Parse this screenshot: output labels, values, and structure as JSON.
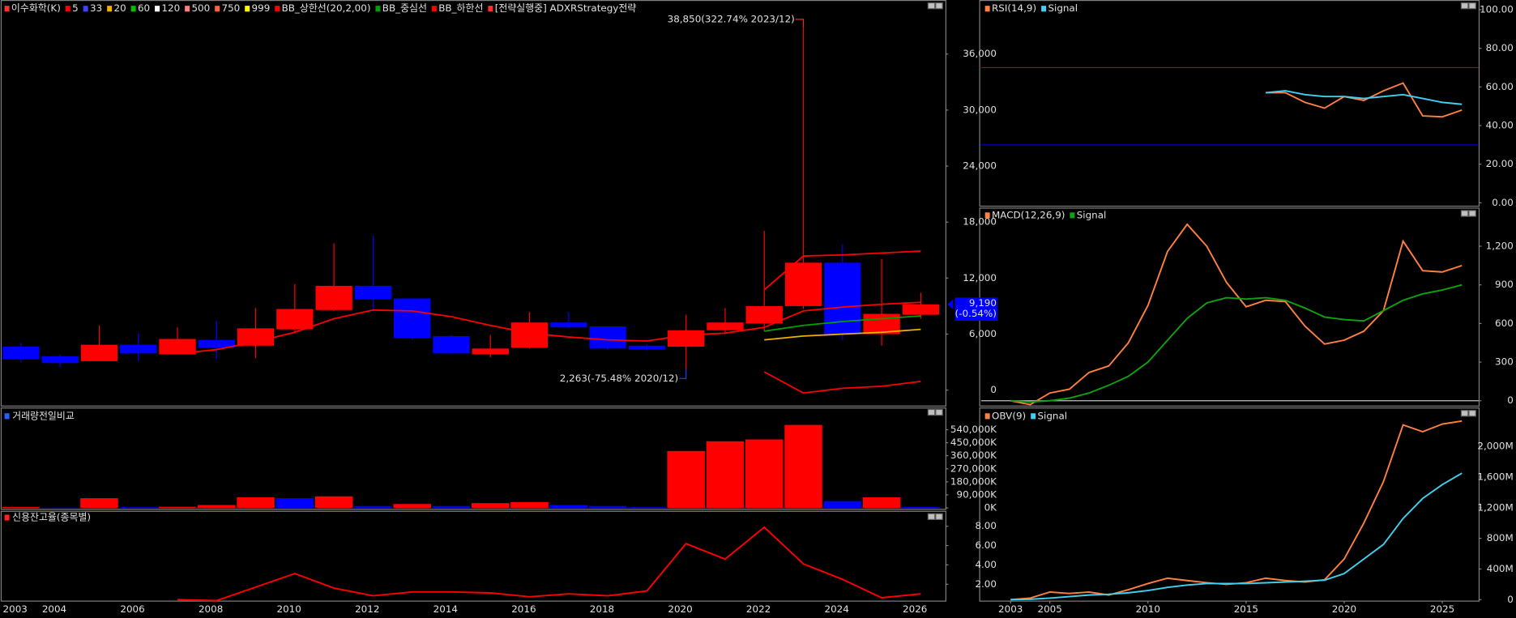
{
  "chart_data": [
    {
      "type": "candlestick",
      "name": "이수화학(K)",
      "name_color": "#ff3030",
      "categories": [
        "2003",
        "2004",
        null,
        "2006",
        null,
        "2008",
        null,
        "2010",
        null,
        "2012",
        null,
        "2014",
        null,
        "2016",
        null,
        "2018",
        null,
        "2020",
        null,
        "2022",
        null,
        "2024",
        null,
        "2026"
      ],
      "open": [
        4650,
        3620,
        3100,
        4860,
        3830,
        5380,
        4760,
        6510,
        8580,
        11170,
        9820,
        5790,
        3830,
        4550,
        7240,
        6820,
        4760,
        4650,
        6410,
        7140,
        9000,
        13650,
        6000,
        8070
      ],
      "high": [
        5070,
        3800,
        6930,
        6100,
        6720,
        7450,
        8790,
        11370,
        15720,
        16540,
        9820,
        5900,
        5890,
        8380,
        8380,
        6820,
        4900,
        8070,
        8790,
        17060,
        38850,
        15610,
        14060,
        10440
      ],
      "low": [
        3000,
        2380,
        3100,
        3100,
        3830,
        3310,
        3410,
        6100,
        8480,
        8380,
        5380,
        3830,
        3520,
        4450,
        6620,
        4340,
        4240,
        2263,
        6100,
        6310,
        8690,
        5380,
        4760,
        7650
      ],
      "close": [
        3310,
        2900,
        4860,
        3930,
        5480,
        4550,
        6620,
        8690,
        11170,
        9720,
        5580,
        3930,
        4450,
        7240,
        6720,
        4450,
        4340,
        6410,
        7240,
        9000,
        13650,
        6000,
        8170,
        9190
      ],
      "up_color": "#ff0000",
      "down_color": "#0000ff",
      "series": [
        {
          "name": "5",
          "color": "#ff0000",
          "values": [
            null,
            null,
            null,
            null,
            3900,
            4340,
            5170,
            6200,
            7650,
            8580,
            8480,
            7860,
            6930,
            6100,
            5690,
            5380,
            5270,
            5900,
            6100,
            6720,
            8480,
            8900,
            9200,
            9400
          ]
        },
        {
          "name": "33",
          "color": "#4040ff",
          "values": [
            null,
            null,
            null,
            null,
            null,
            null,
            null,
            null,
            null,
            null,
            null,
            null,
            null,
            null,
            null,
            null,
            null,
            null,
            null,
            null,
            null,
            null,
            null,
            null
          ]
        },
        {
          "name": "20",
          "color": "#f0b000",
          "values": [
            null,
            null,
            null,
            null,
            null,
            null,
            null,
            null,
            null,
            null,
            null,
            null,
            null,
            null,
            null,
            null,
            null,
            null,
            null,
            5380,
            5790,
            6000,
            6200,
            6510
          ]
        },
        {
          "name": "60",
          "color": "#00c000",
          "values": [
            null,
            null,
            null,
            null,
            null,
            null,
            null,
            null,
            null,
            null,
            null,
            null,
            null,
            null,
            null,
            null,
            null,
            null,
            null,
            null,
            null,
            null,
            null,
            null
          ]
        },
        {
          "name": "120",
          "color": "#ffffff",
          "values": [
            null,
            null,
            null,
            null,
            null,
            null,
            null,
            null,
            null,
            null,
            null,
            null,
            null,
            null,
            null,
            null,
            null,
            null,
            null,
            null,
            null,
            null,
            null,
            null
          ]
        },
        {
          "name": "500",
          "color": "#ff8080",
          "values": [
            null,
            null,
            null,
            null,
            null,
            null,
            null,
            null,
            null,
            null,
            null,
            null,
            null,
            null,
            null,
            null,
            null,
            null,
            null,
            null,
            null,
            null,
            null,
            null
          ]
        },
        {
          "name": "750",
          "color": "#ff6040",
          "values": [
            null,
            null,
            null,
            null,
            null,
            null,
            null,
            null,
            null,
            null,
            null,
            null,
            null,
            null,
            null,
            null,
            null,
            null,
            null,
            null,
            null,
            null,
            null,
            null
          ]
        },
        {
          "name": "999",
          "color": "#ffff00",
          "values": [
            null,
            null,
            null,
            null,
            null,
            null,
            null,
            null,
            null,
            null,
            null,
            null,
            null,
            null,
            null,
            null,
            null,
            null,
            null,
            null,
            null,
            null,
            null,
            null
          ]
        },
        {
          "name": "BB_상한선(20,2,00)",
          "color": "#ff0000",
          "values": [
            null,
            null,
            null,
            null,
            null,
            null,
            null,
            null,
            null,
            null,
            null,
            null,
            null,
            null,
            null,
            null,
            null,
            null,
            null,
            10750,
            14370,
            14480,
            14690,
            14900
          ]
        },
        {
          "name": "BB_중심선",
          "color": "#00a000",
          "values": [
            null,
            null,
            null,
            null,
            null,
            null,
            null,
            null,
            null,
            null,
            null,
            null,
            null,
            null,
            null,
            null,
            null,
            null,
            null,
            6310,
            6930,
            7340,
            7650,
            7960
          ]
        },
        {
          "name": "BB_하한선",
          "color": "#ff0000",
          "values": [
            null,
            null,
            null,
            null,
            null,
            null,
            null,
            null,
            null,
            null,
            null,
            null,
            null,
            null,
            null,
            null,
            null,
            null,
            null,
            1960,
            -310,
            200,
            410,
            930
          ]
        }
      ],
      "strategy_label": "[전략실행중] ADXRStrategy전략",
      "strategy_color": "#ff3030",
      "ylim": [
        -1655,
        41483
      ],
      "yticks": [
        0,
        {
          "value": 6000,
          "label": "6,000"
        },
        {
          "value": 12000,
          "label": "12,000"
        },
        {
          "value": 18000,
          "label": "18,000"
        },
        {
          "value": 24000,
          "label": "24,000"
        },
        {
          "value": 30000,
          "label": "30,000"
        },
        {
          "value": 36000,
          "label": "36,000"
        }
      ],
      "annotations": [
        {
          "value": 38850,
          "label": "38,850(322.74% 2023/12)",
          "color": "#ff2020"
        },
        {
          "value": 2263,
          "label": "2,263(-75.48% 2020/12)",
          "color": "#2040ff"
        }
      ],
      "last_price": {
        "value": 9190,
        "label": "9,190"
      },
      "last_change": "(-0.54%)"
    },
    {
      "type": "bar",
      "title": "거래량전일비교",
      "title_color": "#2060ff",
      "values": [
        7000,
        2000,
        67000,
        5000,
        8000,
        20000,
        73000,
        67000,
        80000,
        13000,
        27000,
        13000,
        33000,
        40000,
        20000,
        13000,
        5000,
        393000,
        460000,
        473000,
        573000,
        47000,
        73000,
        7000
      ],
      "colors": [
        "#ff0000",
        "#0000ff",
        "#ff0000",
        "#0000ff",
        "#ff0000",
        "#ff0000",
        "#ff0000",
        "#0000ff",
        "#ff0000",
        "#0000ff",
        "#ff0000",
        "#0000ff",
        "#ff0000",
        "#ff0000",
        "#0000ff",
        "#0000ff",
        "#0000ff",
        "#ff0000",
        "#ff0000",
        "#ff0000",
        "#ff0000",
        "#0000ff",
        "#ff0000",
        "#0000ff"
      ],
      "ylim": [
        -6667,
        673333
      ],
      "yticks": [
        {
          "value": 0,
          "label": "0K"
        },
        {
          "value": 90000,
          "label": "90,000K"
        },
        {
          "value": 180000,
          "label": "180,000K"
        },
        {
          "value": 270000,
          "label": "270,000K"
        },
        {
          "value": 360000,
          "label": "360,000K"
        },
        {
          "value": 450000,
          "label": "450,000K"
        },
        {
          "value": 540000,
          "label": "540,000K"
        }
      ]
    },
    {
      "type": "line",
      "title": "신용잔고율(종목별)",
      "title_color": "#ff2020",
      "color": "#ff0000",
      "values": [
        null,
        null,
        null,
        null,
        0.4,
        0.3,
        1.7,
        3.1,
        1.6,
        0.8,
        1.2,
        1.2,
        1.1,
        0.7,
        1.0,
        0.8,
        1.3,
        6.2,
        4.6,
        7.9,
        4.1,
        2.5,
        0.6,
        1.0
      ],
      "ylim": [
        0.3,
        9.5
      ],
      "yticks": [
        {
          "value": 2,
          "label": "2.00"
        },
        {
          "value": 4,
          "label": "4.00"
        },
        {
          "value": 6,
          "label": "6.00"
        },
        {
          "value": 8,
          "label": "8.00"
        }
      ]
    },
    {
      "type": "line",
      "x": [
        2003,
        2004,
        2005,
        2006,
        2007,
        2008,
        2009,
        2010,
        2011,
        2012,
        2013,
        2014,
        2015,
        2016,
        2017,
        2018,
        2019,
        2020,
        2021,
        2022,
        2023,
        2024,
        2025,
        2026
      ],
      "xlim": [
        2001.5,
        2026.85
      ],
      "series": [
        {
          "name": "RSI(14,9)",
          "color": "#ff8040",
          "values": [
            null,
            null,
            null,
            null,
            null,
            null,
            null,
            null,
            null,
            null,
            null,
            null,
            null,
            57,
            57,
            52,
            49,
            55,
            53,
            58,
            62,
            45,
            44.5,
            48
          ]
        },
        {
          "name": "Signal",
          "color": "#40d0f0",
          "values": [
            null,
            null,
            null,
            null,
            null,
            null,
            null,
            null,
            null,
            null,
            null,
            null,
            null,
            57,
            58,
            56,
            55,
            55,
            54,
            55,
            56,
            54,
            52,
            51
          ]
        }
      ],
      "hlines": [
        {
          "value": 70,
          "color": "#c00000"
        },
        {
          "value": 30,
          "color": "#0000c0"
        }
      ],
      "ylim": [
        -1.5,
        103.5
      ],
      "yticks": [
        {
          "value": 0,
          "label": "0.00"
        },
        {
          "value": 20,
          "label": "20.00"
        },
        {
          "value": 40,
          "label": "40.00"
        },
        {
          "value": 60,
          "label": "60.00"
        },
        {
          "value": 80,
          "label": "80.00"
        },
        {
          "value": 100,
          "label": "100.00"
        }
      ]
    },
    {
      "type": "line",
      "x": [
        2003,
        2004,
        2005,
        2006,
        2007,
        2008,
        2009,
        2010,
        2011,
        2012,
        2013,
        2014,
        2015,
        2016,
        2017,
        2018,
        2019,
        2020,
        2021,
        2022,
        2023,
        2024,
        2025,
        2026
      ],
      "xlim": [
        2001.5,
        2026.85
      ],
      "series": [
        {
          "name": "MACD(12,26,9)",
          "color": "#ff8040",
          "values": [
            0,
            -30,
            60,
            90,
            220,
            270,
            450,
            740,
            1160,
            1370,
            1200,
            920,
            730,
            780,
            770,
            580,
            440,
            470,
            540,
            700,
            1240,
            1010,
            1000,
            1050
          ]
        },
        {
          "name": "Signal",
          "color": "#10a010",
          "values": [
            0,
            -10,
            0,
            20,
            60,
            120,
            190,
            300,
            470,
            640,
            760,
            800,
            790,
            800,
            780,
            720,
            650,
            630,
            620,
            700,
            780,
            830,
            860,
            900
          ]
        }
      ],
      "hlines": [
        {
          "value": 0,
          "color": "#c0c0c0"
        }
      ],
      "ylim": [
        -37.5,
        1485
      ],
      "yticks": [
        0,
        300,
        600,
        900,
        {
          "value": 1200,
          "label": "1,200"
        }
      ]
    },
    {
      "type": "line",
      "x": [
        2003,
        2004,
        2005,
        2006,
        2007,
        2008,
        2009,
        2010,
        2011,
        2012,
        2013,
        2014,
        2015,
        2016,
        2017,
        2018,
        2019,
        2020,
        2021,
        2022,
        2023,
        2024,
        2025,
        2026
      ],
      "xlim": [
        2001.5,
        2026.85
      ],
      "xticks": [
        2003,
        2005,
        2010,
        2015,
        2020,
        2025
      ],
      "series": [
        {
          "name": "OBV(9)",
          "color": "#ff8040",
          "values": [
            0,
            20,
            100,
            80,
            100,
            60,
            130,
            210,
            280,
            250,
            220,
            200,
            220,
            280,
            250,
            230,
            260,
            530,
            1000,
            1540,
            2280,
            2190,
            2290,
            2330
          ]
        },
        {
          "name": "Signal",
          "color": "#40d0f0",
          "values": [
            0,
            5,
            20,
            40,
            60,
            70,
            90,
            120,
            160,
            190,
            210,
            210,
            210,
            220,
            230,
            240,
            255,
            340,
            530,
            720,
            1060,
            1320,
            1500,
            1650
          ]
        }
      ],
      "ylim": [
        -12.6,
        2469
      ],
      "yticks": [
        0,
        {
          "value": 400,
          "label": "400M"
        },
        {
          "value": 800,
          "label": "800M"
        },
        {
          "value": 1200,
          "label": "1,200M"
        },
        {
          "value": 1600,
          "label": "1,600M"
        },
        {
          "value": 2000,
          "label": "2,000M"
        }
      ]
    }
  ]
}
